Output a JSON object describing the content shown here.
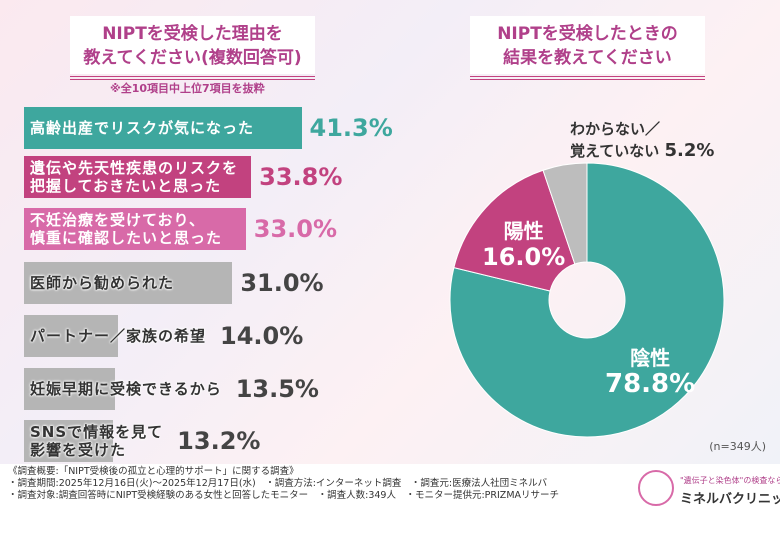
{
  "chart_data": [
    {
      "type": "bar",
      "orientation": "horizontal",
      "title": "NIPTを受検した理由を教えてください(複数回答可)",
      "note": "※全10項目中上位7項目を抜粋",
      "categories": [
        "高齢出産でリスクが気になった",
        "遺伝や先天性疾患のリスクを把握しておきたいと思った",
        "不妊治療を受けており、慎重に確認したいと思った",
        "医師から勧められた",
        "パートナー／家族の希望",
        "妊娠早期に受検できるから",
        "SNSで情報を見て影響を受けた"
      ],
      "labels_lines": [
        [
          "高齢出産でリスクが気になった"
        ],
        [
          "遺伝や先天性疾患のリスクを",
          "把握しておきたいと思った"
        ],
        [
          "不妊治療を受けており、",
          "慎重に確認したいと思った"
        ],
        [
          "医師から勧められた"
        ],
        [
          "パートナー／家族の希望"
        ],
        [
          "妊娠早期に受検できるから"
        ],
        [
          "SNSで情報を見て",
          "影響を受けた"
        ]
      ],
      "values": [
        41.3,
        33.8,
        33.0,
        31.0,
        14.0,
        13.5,
        13.2
      ],
      "value_labels": [
        "41.3%",
        "33.8%",
        "33.0%",
        "31.0%",
        "14.0%",
        "13.5%",
        "13.2%"
      ],
      "colors": [
        "#3ea79e",
        "#c2427f",
        "#d86aa8",
        "#b5b5b5",
        "#b5b5b5",
        "#b5b5b5",
        "#b5b5b5"
      ],
      "value_colors": [
        "#3ea79e",
        "#c2427f",
        "#d86aa8",
        "#444444",
        "#444444",
        "#444444",
        "#444444"
      ],
      "unit": "%"
    },
    {
      "type": "pie",
      "donut": true,
      "title": "NIPTを受検したときの結果を教えてください",
      "slices": [
        {
          "label": "陰性",
          "value": 78.8,
          "value_label": "78.8%",
          "color": "#3ea79e"
        },
        {
          "label": "陽性",
          "value": 16.0,
          "value_label": "16.0%",
          "color": "#c2427f"
        },
        {
          "label": "わからない／覚えていない",
          "value": 5.2,
          "value_label": "5.2%",
          "color": "#bdbdbd"
        }
      ],
      "start": "top",
      "direction": "clockwise"
    }
  ],
  "titles": {
    "left_1": "NIPTを受検した理由を",
    "left_2": "教えてください(複数回答可)",
    "right_1": "NIPTを受検したときの",
    "right_2": "結果を教えてください"
  },
  "pie_labels": {
    "neg": "陰性",
    "neg_val": "78.8%",
    "pos": "陽性",
    "pos_val": "16.0%",
    "unk_1": "わからない／",
    "unk_2": "覚えていない",
    "unk_val": "5.2%"
  },
  "sample": "(n=349人)",
  "footer": {
    "line1": "《調査概要:「NIPT受検後の孤立と心理的サポート」に関する調査》",
    "line2": "・調査期間:2025年12月16日(火)～2025年12月17日(水)　・調査方法:インターネット調査　・調査元:医療法人社団ミネルバ",
    "line3": "・調査対象:調査回答時にNIPT受検経験のある女性と回答したモニター　・調査人数:349人　・モニター提供元:PRIZMAリサーチ",
    "logo_sub": "\"遺伝子と染色体\"の検査なら",
    "logo_name": "ミネルバクリニック"
  }
}
